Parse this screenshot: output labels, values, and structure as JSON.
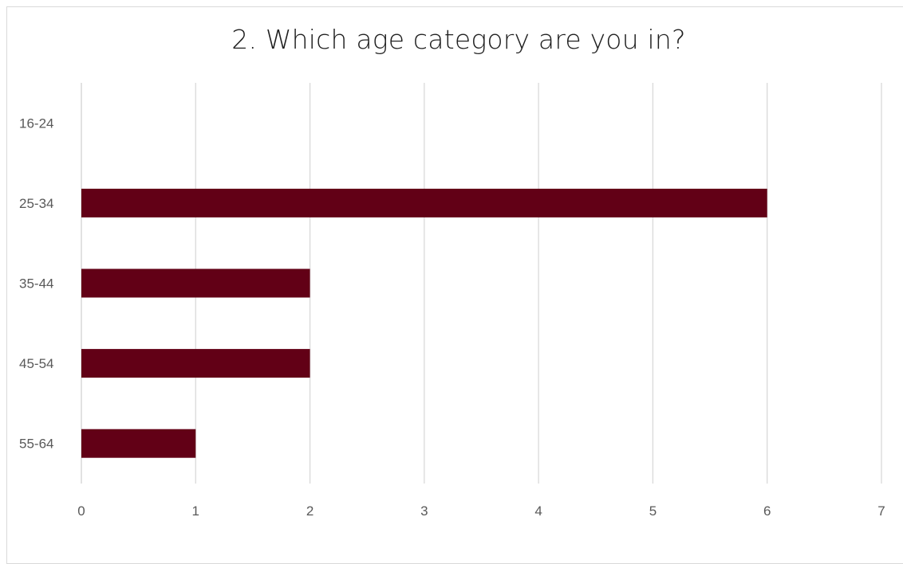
{
  "chart_data": {
    "type": "bar",
    "orientation": "horizontal",
    "title": "2. Which age category are you in?",
    "categories": [
      "16-24",
      "25-34",
      "35-44",
      "45-54",
      "55-64"
    ],
    "values": [
      0,
      6,
      2,
      2,
      1
    ],
    "xlabel": "",
    "ylabel": "",
    "xlim": [
      0,
      7
    ],
    "xticks": [
      "0",
      "1",
      "2",
      "3",
      "4",
      "5",
      "6",
      "7"
    ],
    "grid": "vertical",
    "legend": "none",
    "colors": {
      "bar": "#620016",
      "grid": "#d9d9d9",
      "text": "#595959",
      "title": "#1f1f1f"
    }
  }
}
